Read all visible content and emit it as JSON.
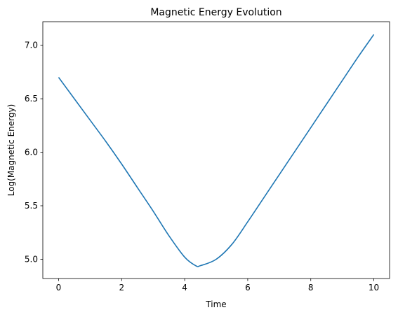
{
  "chart_data": {
    "type": "line",
    "title": "Magnetic Energy Evolution",
    "xlabel": "Time",
    "ylabel": "Log(Magnetic Energy)",
    "xlim": [
      -0.5,
      10.5
    ],
    "ylim": [
      4.82,
      7.22
    ],
    "xticks": [
      0,
      2,
      4,
      6,
      8,
      10
    ],
    "xtick_labels": [
      "0",
      "2",
      "4",
      "6",
      "8",
      "10"
    ],
    "yticks": [
      5.0,
      5.5,
      6.0,
      6.5,
      7.0
    ],
    "ytick_labels": [
      "5.0",
      "5.5",
      "6.0",
      "6.5",
      "7.0"
    ],
    "grid": false,
    "series": [
      {
        "color": "#1f77b4",
        "x": [
          0,
          0.5,
          1.0,
          1.5,
          2.0,
          2.5,
          3.0,
          3.5,
          4.0,
          4.35,
          4.5,
          5.0,
          5.5,
          6.0,
          6.5,
          7.0,
          7.5,
          8.0,
          8.5,
          9.0,
          9.5,
          10.0
        ],
        "y": [
          6.7,
          6.5,
          6.3,
          6.1,
          5.89,
          5.67,
          5.45,
          5.22,
          5.02,
          4.94,
          4.94,
          5.0,
          5.14,
          5.35,
          5.57,
          5.79,
          6.01,
          6.23,
          6.45,
          6.67,
          6.89,
          7.1
        ]
      }
    ]
  }
}
